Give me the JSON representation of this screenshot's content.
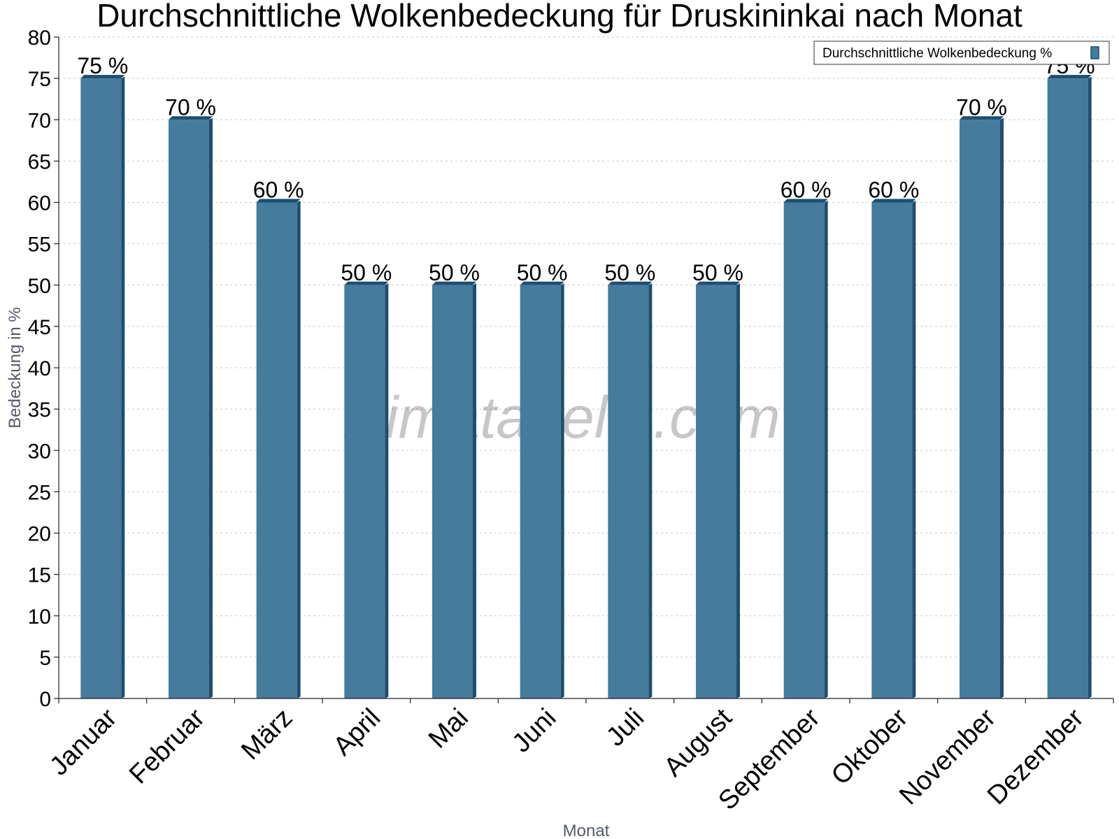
{
  "chart_data": {
    "type": "bar",
    "title": "Durchschnittliche Wolkenbedeckung für Druskininkai nach Monat",
    "xlabel": "Monat",
    "ylabel": "Bedeckung in %",
    "categories": [
      "Januar",
      "Februar",
      "März",
      "April",
      "Mai",
      "Juni",
      "Juli",
      "August",
      "September",
      "Oktober",
      "November",
      "Dezember"
    ],
    "series": [
      {
        "name": "Durchschnittliche Wolkenbedeckung %",
        "values": [
          75,
          70,
          60,
          50,
          50,
          50,
          50,
          50,
          60,
          60,
          70,
          75
        ],
        "data_labels": [
          "75 %",
          "70 %",
          "60 %",
          "50 %",
          "50 %",
          "50 %",
          "50 %",
          "50 %",
          "60 %",
          "60 %",
          "70 %",
          "75 %"
        ]
      }
    ],
    "ylim": [
      0,
      80
    ],
    "yticks": [
      0,
      5,
      10,
      15,
      20,
      25,
      30,
      35,
      40,
      45,
      50,
      55,
      60,
      65,
      70,
      75,
      80
    ],
    "grid": true,
    "legend": "top-right",
    "colors": {
      "bar": "#457b9d",
      "bar_side": "#1d4f6e"
    },
    "watermark": "klimatabelle.com"
  }
}
